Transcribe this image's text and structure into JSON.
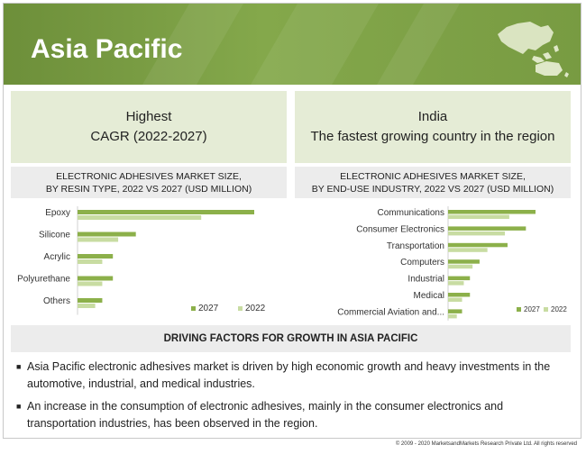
{
  "header": {
    "title": "Asia Pacific"
  },
  "highlights": {
    "left": {
      "line1": "Highest",
      "line2": "CAGR (2022-2027)"
    },
    "right": {
      "line1": "India",
      "line2": "The fastest growing country in the region"
    }
  },
  "chart_data": [
    {
      "type": "bar",
      "orientation": "horizontal",
      "title_line1": "ELECTRONIC ADHESIVES MARKET SIZE,",
      "title_line2": "BY RESIN TYPE, 2022 VS 2027 (USD MILLION)",
      "categories": [
        "Epoxy",
        "Silicone",
        "Acrylic",
        "Polyurethane",
        "Others"
      ],
      "series": [
        {
          "name": "2027",
          "values": [
            100,
            33,
            20,
            20,
            14
          ]
        },
        {
          "name": "2022",
          "values": [
            70,
            23,
            14,
            14,
            10
          ]
        }
      ],
      "xlim": [
        0,
        100
      ],
      "grid": false,
      "legend": "bottom-right",
      "colors": {
        "2027": "#8cb04a",
        "2022": "#c8dca2"
      }
    },
    {
      "type": "bar",
      "orientation": "horizontal",
      "title_line1": "ELECTRONIC ADHESIVES MARKET SIZE,",
      "title_line2": "BY END-USE INDUSTRY, 2022 VS 2027 (USD MILLION)",
      "categories": [
        "Communications",
        "Consumer Electronics",
        "Transportation",
        "Computers",
        "Industrial",
        "Medical",
        "Commercial Aviation and..."
      ],
      "series": [
        {
          "name": "2027",
          "values": [
            100,
            89,
            68,
            36,
            25,
            25,
            16
          ]
        },
        {
          "name": "2022",
          "values": [
            70,
            65,
            45,
            28,
            18,
            16,
            10
          ]
        }
      ],
      "xlim": [
        0,
        100
      ],
      "grid": false,
      "legend": "bottom-right",
      "colors": {
        "2027": "#8cb04a",
        "2022": "#c8dca2"
      }
    }
  ],
  "drivers": {
    "title": "DRIVING FACTORS FOR GROWTH IN ASIA PACIFIC",
    "items": [
      "Asia Pacific electronic adhesives market is driven by high economic growth and heavy investments in the automotive, industrial, and medical industries.",
      "An increase in the consumption of electronic adhesives, mainly in the consumer electronics and transportation industries, has been observed in the region."
    ]
  },
  "footer": {
    "copyright": "© 2009 - 2020 MarketsandMarkets Research Private Ltd. All rights reserved"
  }
}
